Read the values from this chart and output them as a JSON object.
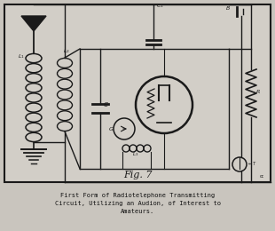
{
  "bg_color": "#c9c5be",
  "border_color": "#222222",
  "line_color": "#1a1a1a",
  "fig_label": "Fig. 7",
  "caption_line1": "First Form of Radiotelephone Transmitting",
  "caption_line2": "Circuit, Utilizing an Audion, of Interest to",
  "caption_line3": "Amateurs.",
  "caption_color": "#111111",
  "outer_bg": "#c9c5be",
  "inner_bg": "#d2cec7"
}
